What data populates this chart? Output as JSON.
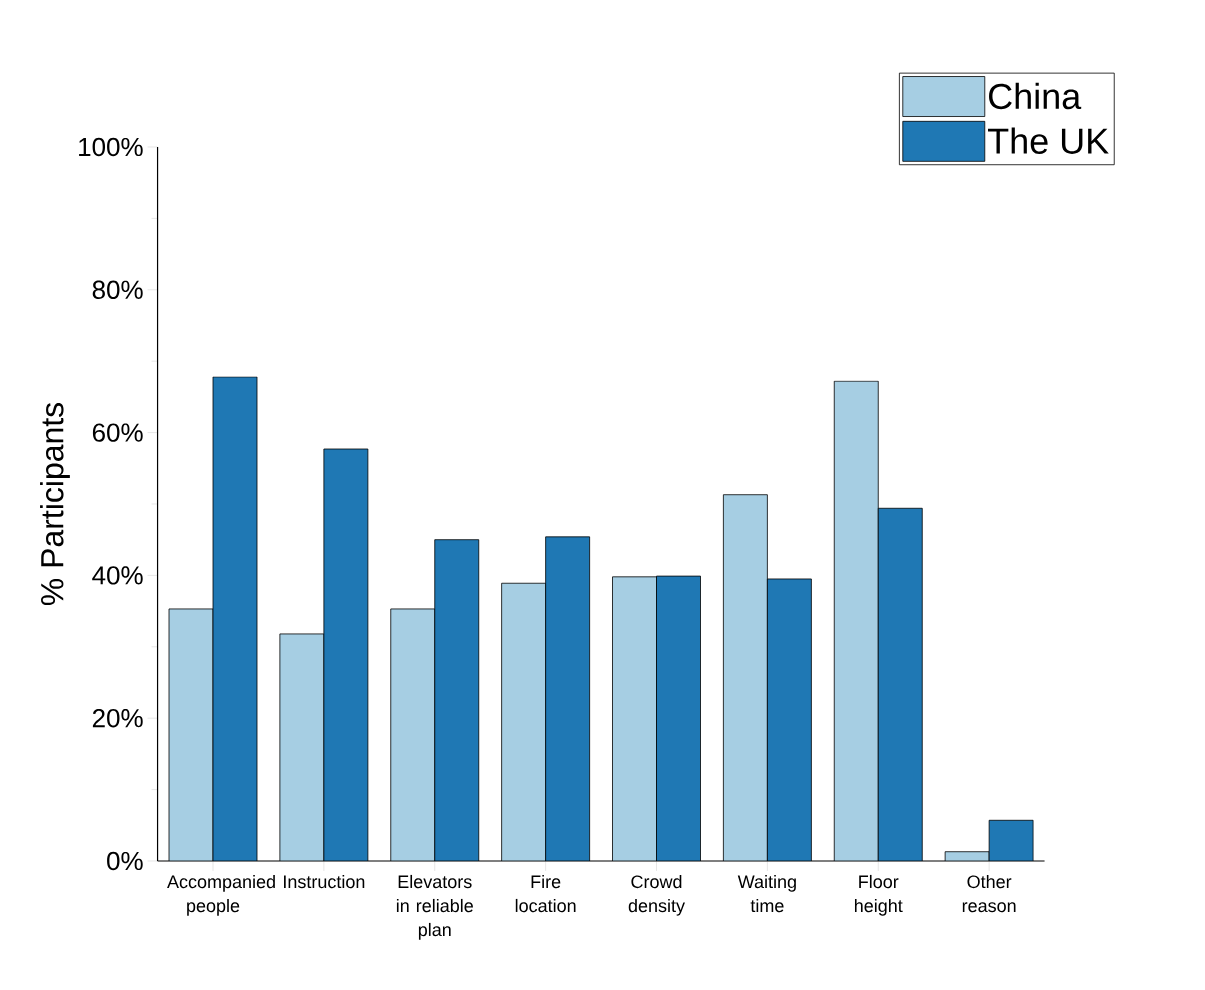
{
  "chart_data": {
    "type": "bar",
    "ylabel": "% Participants",
    "categories": [
      "Accompanied people",
      "Instruction",
      "Elevators in reliable plan",
      "Fire location",
      "Crowd density",
      "Waiting time",
      "Floor height",
      "Other reason"
    ],
    "series": [
      {
        "name": "China",
        "color": "#a6cee3",
        "values": [
          35.3,
          31.8,
          35.3,
          38.9,
          39.8,
          51.3,
          67.2,
          1.3
        ]
      },
      {
        "name": "The UK",
        "color": "#1f78b4",
        "values": [
          67.8,
          57.7,
          45.0,
          45.4,
          39.9,
          39.5,
          49.4,
          5.7
        ]
      }
    ],
    "ylim": [
      0,
      100
    ],
    "yticks": [
      {
        "value": 0,
        "label": "0%"
      },
      {
        "value": 20,
        "label": "20%"
      },
      {
        "value": 40,
        "label": "40%"
      },
      {
        "value": 60,
        "label": "60%"
      },
      {
        "value": 80,
        "label": "80%"
      },
      {
        "value": 100,
        "label": "100%"
      }
    ],
    "legend": "top right"
  }
}
